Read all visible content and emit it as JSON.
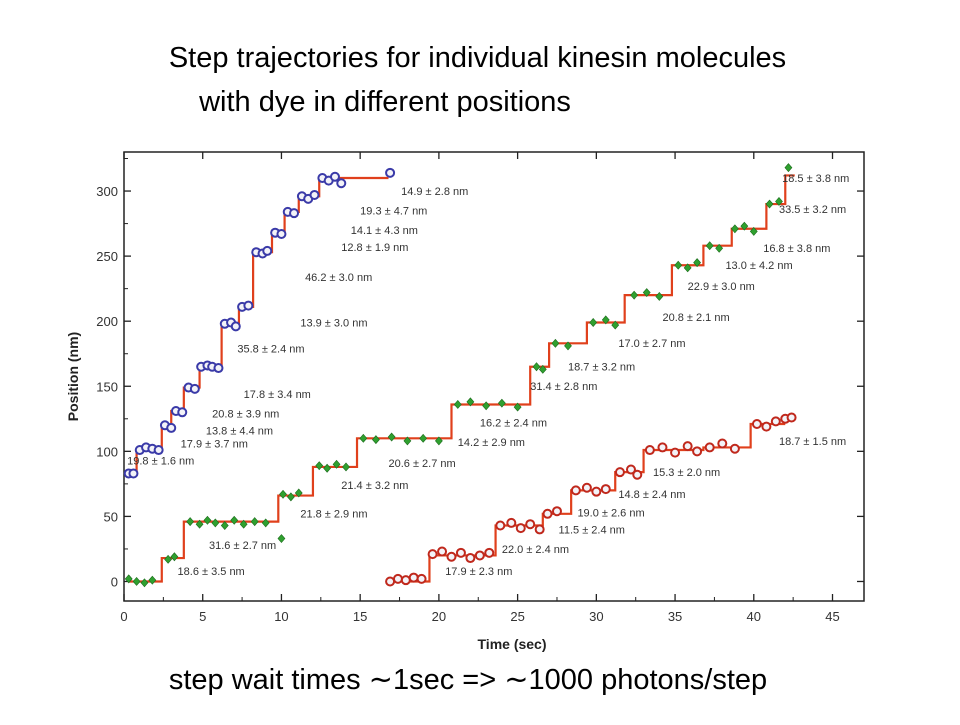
{
  "slide": {
    "title_line1": "Step trajectories for individual kinesin molecules",
    "title_line2": "with dye in different positions",
    "caption": "step wait times ∼1sec => ∼1000 photons/step"
  },
  "chart_data": {
    "type": "line",
    "xlabel": "Time (sec)",
    "ylabel": "Position (nm)",
    "xlim": [
      0,
      47
    ],
    "ylim": [
      -15,
      330
    ],
    "xticks": [
      0,
      5,
      10,
      15,
      20,
      25,
      30,
      35,
      40,
      45
    ],
    "yticks": [
      0,
      50,
      100,
      150,
      200,
      250,
      300
    ],
    "grid": false,
    "series": [
      {
        "color": "#3a3aa8",
        "step_color": "#e0401c",
        "marker": "circle",
        "steps": [
          [
            0.3,
            83
          ],
          [
            0.8,
            102
          ],
          [
            2.4,
            120
          ],
          [
            3.0,
            131
          ],
          [
            3.8,
            149
          ],
          [
            4.8,
            165
          ],
          [
            6.2,
            198
          ],
          [
            7.3,
            211
          ],
          [
            8.2,
            253
          ],
          [
            9.4,
            268
          ],
          [
            10.2,
            284
          ],
          [
            11.1,
            296
          ],
          [
            12.4,
            310
          ],
          [
            16.8,
            310
          ]
        ],
        "points": [
          [
            0.3,
            83
          ],
          [
            0.6,
            83
          ],
          [
            1.0,
            101
          ],
          [
            1.4,
            103
          ],
          [
            1.8,
            102
          ],
          [
            2.2,
            101
          ],
          [
            2.6,
            120
          ],
          [
            3.0,
            118
          ],
          [
            3.3,
            131
          ],
          [
            3.7,
            130
          ],
          [
            4.1,
            149
          ],
          [
            4.5,
            148
          ],
          [
            4.9,
            165
          ],
          [
            5.3,
            166
          ],
          [
            5.6,
            165
          ],
          [
            6.0,
            164
          ],
          [
            6.4,
            198
          ],
          [
            6.8,
            199
          ],
          [
            7.1,
            196
          ],
          [
            7.5,
            211
          ],
          [
            7.9,
            212
          ],
          [
            8.4,
            253
          ],
          [
            8.8,
            252
          ],
          [
            9.1,
            254
          ],
          [
            9.6,
            268
          ],
          [
            10.0,
            267
          ],
          [
            10.4,
            284
          ],
          [
            10.8,
            283
          ],
          [
            11.3,
            296
          ],
          [
            11.7,
            294
          ],
          [
            12.1,
            297
          ],
          [
            12.6,
            310
          ],
          [
            13.0,
            308
          ],
          [
            13.4,
            311
          ],
          [
            13.8,
            306
          ],
          [
            16.9,
            314
          ]
        ],
        "labels": [
          {
            "text": "19.8 ± 1.6 nm",
            "x": 0.2,
            "y": 90
          },
          {
            "text": "17.9 ± 3.7 nm",
            "x": 3.6,
            "y": 103
          },
          {
            "text": "13.8 ± 4.4 nm",
            "x": 5.2,
            "y": 113
          },
          {
            "text": "20.8 ± 3.9 nm",
            "x": 5.6,
            "y": 126
          },
          {
            "text": "17.8 ± 3.4 nm",
            "x": 7.6,
            "y": 141
          },
          {
            "text": "35.8 ± 2.4 nm",
            "x": 7.2,
            "y": 176
          },
          {
            "text": "13.9 ± 3.0 nm",
            "x": 11.2,
            "y": 196
          },
          {
            "text": "46.2 ± 3.0 nm",
            "x": 11.5,
            "y": 231
          },
          {
            "text": "12.8 ± 1.9 nm",
            "x": 13.8,
            "y": 254
          },
          {
            "text": "14.1 ± 4.3 nm",
            "x": 14.4,
            "y": 267
          },
          {
            "text": "19.3 ± 4.7 nm",
            "x": 15.0,
            "y": 282
          },
          {
            "text": "14.9 ± 2.8 nm",
            "x": 17.6,
            "y": 297
          }
        ]
      },
      {
        "color": "#2fa02f",
        "step_color": "#e0401c",
        "marker": "diamond",
        "steps": [
          [
            0.3,
            0
          ],
          [
            2.4,
            18
          ],
          [
            3.8,
            46
          ],
          [
            9.8,
            66
          ],
          [
            12.0,
            88
          ],
          [
            14.8,
            110
          ],
          [
            20.8,
            136
          ],
          [
            25.8,
            165
          ],
          [
            27.0,
            183
          ],
          [
            29.4,
            199
          ],
          [
            31.8,
            220
          ],
          [
            34.8,
            243
          ],
          [
            36.8,
            258
          ],
          [
            38.6,
            271
          ],
          [
            40.8,
            290
          ],
          [
            42.0,
            312
          ],
          [
            42.6,
            312
          ]
        ],
        "points": [
          [
            0.3,
            2
          ],
          [
            0.8,
            0
          ],
          [
            1.3,
            -1
          ],
          [
            1.8,
            1
          ],
          [
            2.8,
            17
          ],
          [
            3.2,
            19
          ],
          [
            4.2,
            46
          ],
          [
            4.8,
            44
          ],
          [
            5.3,
            47
          ],
          [
            5.8,
            45
          ],
          [
            6.4,
            43
          ],
          [
            7.0,
            47
          ],
          [
            7.6,
            44
          ],
          [
            8.3,
            46
          ],
          [
            9.0,
            45
          ],
          [
            10.1,
            67
          ],
          [
            10.6,
            65
          ],
          [
            11.1,
            68
          ],
          [
            12.4,
            89
          ],
          [
            12.9,
            87
          ],
          [
            13.5,
            90
          ],
          [
            14.1,
            88
          ],
          [
            15.2,
            110
          ],
          [
            16.0,
            109
          ],
          [
            17.0,
            111
          ],
          [
            18.0,
            108
          ],
          [
            19.0,
            110
          ],
          [
            20.0,
            108
          ],
          [
            21.2,
            136
          ],
          [
            22.0,
            138
          ],
          [
            23.0,
            135
          ],
          [
            24.0,
            137
          ],
          [
            25.0,
            134
          ],
          [
            26.2,
            165
          ],
          [
            26.6,
            163
          ],
          [
            27.4,
            183
          ],
          [
            28.2,
            181
          ],
          [
            29.8,
            199
          ],
          [
            30.6,
            201
          ],
          [
            31.2,
            197
          ],
          [
            32.4,
            220
          ],
          [
            33.2,
            222
          ],
          [
            34.0,
            219
          ],
          [
            35.2,
            243
          ],
          [
            35.8,
            241
          ],
          [
            36.4,
            245
          ],
          [
            37.2,
            258
          ],
          [
            37.8,
            256
          ],
          [
            38.8,
            271
          ],
          [
            39.4,
            273
          ],
          [
            40.0,
            269
          ],
          [
            41.0,
            290
          ],
          [
            41.6,
            292
          ],
          [
            42.2,
            318
          ],
          [
            10.0,
            33
          ]
        ],
        "labels": [
          {
            "text": "18.6 ± 3.5 nm",
            "x": 3.4,
            "y": 5
          },
          {
            "text": "31.6 ± 2.7 nm",
            "x": 5.4,
            "y": 25
          },
          {
            "text": "21.8 ± 2.9 nm",
            "x": 11.2,
            "y": 49
          },
          {
            "text": "21.4 ± 3.2 nm",
            "x": 13.8,
            "y": 71
          },
          {
            "text": "20.6 ± 2.7 nm",
            "x": 16.8,
            "y": 88
          },
          {
            "text": "14.2 ± 2.9 nm",
            "x": 21.2,
            "y": 104
          },
          {
            "text": "16.2 ± 2.4 nm",
            "x": 22.6,
            "y": 119
          },
          {
            "text": "31.4 ± 2.8 nm",
            "x": 25.8,
            "y": 147
          },
          {
            "text": "18.7 ± 3.2 nm",
            "x": 28.2,
            "y": 162
          },
          {
            "text": "17.0 ± 2.7 nm",
            "x": 31.4,
            "y": 180
          },
          {
            "text": "20.8 ± 2.1 nm",
            "x": 34.2,
            "y": 200
          },
          {
            "text": "22.9 ± 3.0 nm",
            "x": 35.8,
            "y": 224
          },
          {
            "text": "13.0 ± 4.2 nm",
            "x": 38.2,
            "y": 240
          },
          {
            "text": "16.8 ± 3.8 nm",
            "x": 40.6,
            "y": 253
          },
          {
            "text": "33.5 ± 3.2 nm",
            "x": 41.6,
            "y": 283
          },
          {
            "text": "18.5 ± 3.8 nm",
            "x": 41.8,
            "y": 307
          }
        ]
      },
      {
        "color": "#c0281c",
        "step_color": "#e0401c",
        "marker": "circle",
        "steps": [
          [
            16.8,
            0
          ],
          [
            19.4,
            20
          ],
          [
            23.6,
            43
          ],
          [
            26.6,
            52
          ],
          [
            28.4,
            70
          ],
          [
            31.2,
            84
          ],
          [
            33.0,
            101
          ],
          [
            36.8,
            103
          ],
          [
            39.8,
            121
          ],
          [
            42.0,
            121
          ]
        ],
        "points": [
          [
            16.9,
            0
          ],
          [
            17.4,
            2
          ],
          [
            17.9,
            1
          ],
          [
            18.4,
            3
          ],
          [
            18.9,
            2
          ],
          [
            19.6,
            21
          ],
          [
            20.2,
            23
          ],
          [
            20.8,
            19
          ],
          [
            21.4,
            22
          ],
          [
            22.0,
            18
          ],
          [
            22.6,
            20
          ],
          [
            23.2,
            22
          ],
          [
            23.9,
            43
          ],
          [
            24.6,
            45
          ],
          [
            25.2,
            41
          ],
          [
            25.8,
            44
          ],
          [
            26.4,
            40
          ],
          [
            26.9,
            52
          ],
          [
            27.5,
            54
          ],
          [
            28.7,
            70
          ],
          [
            29.4,
            72
          ],
          [
            30.0,
            69
          ],
          [
            30.6,
            71
          ],
          [
            31.5,
            84
          ],
          [
            32.2,
            86
          ],
          [
            32.6,
            82
          ],
          [
            33.4,
            101
          ],
          [
            34.2,
            103
          ],
          [
            35.0,
            99
          ],
          [
            35.8,
            104
          ],
          [
            36.4,
            100
          ],
          [
            37.2,
            103
          ],
          [
            38.0,
            106
          ],
          [
            38.8,
            102
          ],
          [
            40.2,
            121
          ],
          [
            40.8,
            119
          ],
          [
            41.4,
            123
          ],
          [
            42.0,
            125
          ],
          [
            42.4,
            126
          ]
        ],
        "labels": [
          {
            "text": "17.9 ± 2.3 nm",
            "x": 20.4,
            "y": 5
          },
          {
            "text": "22.0 ± 2.4 nm",
            "x": 24.0,
            "y": 22
          },
          {
            "text": "11.5 ± 2.4 nm",
            "x": 27.6,
            "y": 37
          },
          {
            "text": "19.0 ± 2.6 nm",
            "x": 28.8,
            "y": 50
          },
          {
            "text": "14.8 ± 2.4 nm",
            "x": 31.4,
            "y": 64
          },
          {
            "text": "15.3 ± 2.0 nm",
            "x": 33.6,
            "y": 81
          },
          {
            "text": "18.7 ± 1.5 nm",
            "x": 41.6,
            "y": 105
          }
        ]
      }
    ]
  }
}
